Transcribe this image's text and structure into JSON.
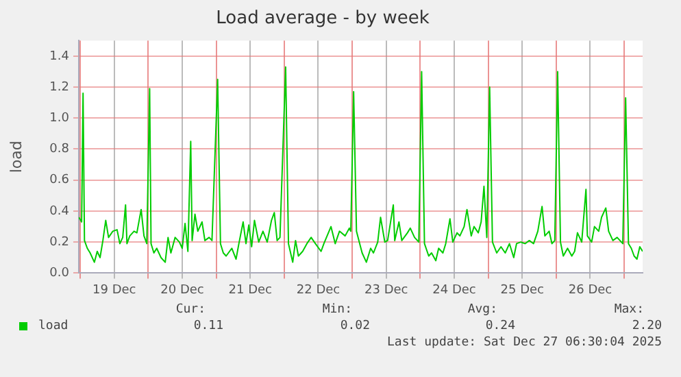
{
  "chart_data": {
    "type": "line",
    "title": "Load average - by week",
    "ylabel": "load",
    "xlim": [
      "2025-12-18T23:30",
      "2025-12-27T06:30"
    ],
    "xticks": [
      {
        "value": "2025-12-19T00:00",
        "label": null
      },
      {
        "value": "2025-12-19T12:00",
        "label": "19 Dec"
      },
      {
        "value": "2025-12-20T00:00",
        "label": null
      },
      {
        "value": "2025-12-20T12:00",
        "label": "20 Dec"
      },
      {
        "value": "2025-12-21T00:00",
        "label": null
      },
      {
        "value": "2025-12-21T12:00",
        "label": "21 Dec"
      },
      {
        "value": "2025-12-22T00:00",
        "label": null
      },
      {
        "value": "2025-12-22T12:00",
        "label": "22 Dec"
      },
      {
        "value": "2025-12-23T00:00",
        "label": null
      },
      {
        "value": "2025-12-23T12:00",
        "label": "23 Dec"
      },
      {
        "value": "2025-12-24T00:00",
        "label": null
      },
      {
        "value": "2025-12-24T12:00",
        "label": "24 Dec"
      },
      {
        "value": "2025-12-25T00:00",
        "label": null
      },
      {
        "value": "2025-12-25T12:00",
        "label": "25 Dec"
      },
      {
        "value": "2025-12-26T00:00",
        "label": null
      },
      {
        "value": "2025-12-26T12:00",
        "label": "26 Dec"
      },
      {
        "value": "2025-12-27T00:00",
        "label": null
      }
    ],
    "ylim": [
      0,
      1.5
    ],
    "yticks": [
      {
        "value": 0,
        "label": "0.0"
      },
      {
        "value": 0.2,
        "label": "0.2"
      },
      {
        "value": 0.4,
        "label": "0.4"
      },
      {
        "value": 0.6,
        "label": "0.6"
      },
      {
        "value": 0.8,
        "label": "0.8"
      },
      {
        "value": 1,
        "label": "1.0"
      },
      {
        "value": 1.2,
        "label": "1.2"
      },
      {
        "value": 1.4,
        "label": "1.4"
      }
    ],
    "grid": true,
    "legend": "bottom",
    "marker": "none",
    "line_style": "solid",
    "annotations": [
      "Cur:",
      "Min:",
      "Avg:",
      "Max:",
      "0.11",
      "0.02",
      "0.24",
      "2.20",
      "Last update: Sat Dec 27 06:30:04 2025"
    ],
    "series": [
      {
        "name": "load",
        "color": "#00cc00",
        "x": [
          "2025-12-18T23:30",
          "2025-12-19T00:30",
          "2025-12-19T01:00",
          "2025-12-19T01:30",
          "2025-12-19T02:30",
          "2025-12-19T03:30",
          "2025-12-19T05:00",
          "2025-12-19T06:00",
          "2025-12-19T07:00",
          "2025-12-19T08:00",
          "2025-12-19T09:00",
          "2025-12-19T10:00",
          "2025-12-19T11:30",
          "2025-12-19T13:00",
          "2025-12-19T14:00",
          "2025-12-19T15:00",
          "2025-12-19T16:00",
          "2025-12-19T16:30",
          "2025-12-19T17:30",
          "2025-12-19T19:00",
          "2025-12-19T20:00",
          "2025-12-19T21:30",
          "2025-12-19T22:30",
          "2025-12-19T23:30",
          "2025-12-20T00:30",
          "2025-12-20T01:00",
          "2025-12-20T02:00",
          "2025-12-20T03:00",
          "2025-12-20T04:30",
          "2025-12-20T06:00",
          "2025-12-20T07:00",
          "2025-12-20T08:00",
          "2025-12-20T09:30",
          "2025-12-20T11:00",
          "2025-12-20T12:00",
          "2025-12-20T13:00",
          "2025-12-20T14:00",
          "2025-12-20T15:00",
          "2025-12-20T15:30",
          "2025-12-20T16:30",
          "2025-12-20T17:30",
          "2025-12-20T19:00",
          "2025-12-20T20:00",
          "2025-12-20T21:30",
          "2025-12-20T22:30",
          "2025-12-21T00:30",
          "2025-12-21T01:30",
          "2025-12-21T02:30",
          "2025-12-21T03:30",
          "2025-12-21T05:30",
          "2025-12-21T07:00",
          "2025-12-21T08:00",
          "2025-12-21T09:30",
          "2025-12-21T10:30",
          "2025-12-21T11:30",
          "2025-12-21T12:30",
          "2025-12-21T13:30",
          "2025-12-21T15:00",
          "2025-12-21T16:30",
          "2025-12-21T18:00",
          "2025-12-21T19:30",
          "2025-12-21T20:30",
          "2025-12-21T21:30",
          "2025-12-21T22:30",
          "2025-12-22T00:30",
          "2025-12-22T01:30",
          "2025-12-22T02:30",
          "2025-12-22T03:00",
          "2025-12-22T04:00",
          "2025-12-22T05:00",
          "2025-12-22T06:30",
          "2025-12-22T08:00",
          "2025-12-22T09:30",
          "2025-12-22T11:00",
          "2025-12-22T13:00",
          "2025-12-22T14:00",
          "2025-12-22T16:30",
          "2025-12-22T18:00",
          "2025-12-22T19:30",
          "2025-12-22T21:30",
          "2025-12-22T23:00",
          "2025-12-22T23:30",
          "2025-12-23T00:30",
          "2025-12-23T01:30",
          "2025-12-23T02:30",
          "2025-12-23T03:30",
          "2025-12-23T05:00",
          "2025-12-23T06:30",
          "2025-12-23T07:30",
          "2025-12-23T09:00",
          "2025-12-23T10:00",
          "2025-12-23T11:30",
          "2025-12-23T12:30",
          "2025-12-23T14:30",
          "2025-12-23T15:00",
          "2025-12-23T16:30",
          "2025-12-23T17:30",
          "2025-12-23T19:30",
          "2025-12-23T20:30",
          "2025-12-23T22:00",
          "2025-12-23T23:30",
          "2025-12-24T00:30",
          "2025-12-24T01:30",
          "2025-12-24T03:00",
          "2025-12-24T04:00",
          "2025-12-24T05:30",
          "2025-12-24T06:30",
          "2025-12-24T08:00",
          "2025-12-24T09:00",
          "2025-12-24T10:30",
          "2025-12-24T11:30",
          "2025-12-24T13:00",
          "2025-12-24T14:00",
          "2025-12-24T15:30",
          "2025-12-24T16:30",
          "2025-12-24T18:00",
          "2025-12-24T19:00",
          "2025-12-24T20:30",
          "2025-12-24T21:30",
          "2025-12-24T22:30",
          "2025-12-24T23:30",
          "2025-12-25T00:30",
          "2025-12-25T01:30",
          "2025-12-25T03:00",
          "2025-12-25T04:30",
          "2025-12-25T06:00",
          "2025-12-25T07:30",
          "2025-12-25T09:00",
          "2025-12-25T10:00",
          "2025-12-25T11:30",
          "2025-12-25T13:00",
          "2025-12-25T14:30",
          "2025-12-25T16:00",
          "2025-12-25T17:30",
          "2025-12-25T19:00",
          "2025-12-25T20:00",
          "2025-12-25T21:30",
          "2025-12-25T22:30",
          "2025-12-25T23:30",
          "2025-12-26T00:30",
          "2025-12-26T01:30",
          "2025-12-26T02:30",
          "2025-12-26T04:00",
          "2025-12-26T05:30",
          "2025-12-26T06:30",
          "2025-12-26T07:30",
          "2025-12-26T09:00",
          "2025-12-26T10:30",
          "2025-12-26T11:00",
          "2025-12-26T12:30",
          "2025-12-26T13:30",
          "2025-12-26T15:00",
          "2025-12-26T16:00",
          "2025-12-26T17:30",
          "2025-12-26T18:30",
          "2025-12-26T20:00",
          "2025-12-26T21:30",
          "2025-12-26T23:00",
          "2025-12-26T23:30",
          "2025-12-27T00:30",
          "2025-12-27T01:30",
          "2025-12-27T02:30",
          "2025-12-27T03:30",
          "2025-12-27T04:30",
          "2025-12-27T05:30",
          "2025-12-27T06:30"
        ],
        "values": [
          0.36,
          0.33,
          1.16,
          0.21,
          0.16,
          0.13,
          0.07,
          0.14,
          0.1,
          0.21,
          0.34,
          0.23,
          0.27,
          0.28,
          0.19,
          0.23,
          0.44,
          0.19,
          0.24,
          0.27,
          0.26,
          0.41,
          0.24,
          0.19,
          1.19,
          0.19,
          0.13,
          0.16,
          0.1,
          0.07,
          0.23,
          0.13,
          0.23,
          0.2,
          0.16,
          0.32,
          0.14,
          0.85,
          0.21,
          0.38,
          0.27,
          0.33,
          0.21,
          0.23,
          0.21,
          1.25,
          0.19,
          0.13,
          0.11,
          0.16,
          0.09,
          0.19,
          0.33,
          0.19,
          0.31,
          0.17,
          0.34,
          0.2,
          0.27,
          0.2,
          0.34,
          0.39,
          0.21,
          0.23,
          1.33,
          0.19,
          0.11,
          0.07,
          0.21,
          0.11,
          0.14,
          0.19,
          0.23,
          0.19,
          0.14,
          0.19,
          0.3,
          0.19,
          0.27,
          0.24,
          0.29,
          0.27,
          1.17,
          0.27,
          0.2,
          0.13,
          0.07,
          0.16,
          0.13,
          0.2,
          0.36,
          0.2,
          0.21,
          0.44,
          0.21,
          0.33,
          0.21,
          0.26,
          0.29,
          0.23,
          0.2,
          1.3,
          0.19,
          0.11,
          0.13,
          0.08,
          0.16,
          0.13,
          0.19,
          0.35,
          0.2,
          0.26,
          0.24,
          0.3,
          0.41,
          0.24,
          0.3,
          0.26,
          0.33,
          0.56,
          0.23,
          1.2,
          0.2,
          0.13,
          0.17,
          0.13,
          0.19,
          0.1,
          0.19,
          0.2,
          0.19,
          0.21,
          0.19,
          0.27,
          0.43,
          0.24,
          0.27,
          0.19,
          0.21,
          1.3,
          0.2,
          0.11,
          0.16,
          0.11,
          0.14,
          0.26,
          0.2,
          0.54,
          0.24,
          0.2,
          0.3,
          0.27,
          0.36,
          0.42,
          0.27,
          0.21,
          0.23,
          0.2,
          0.19,
          1.13,
          0.19,
          0.16,
          0.11,
          0.09,
          0.17,
          0.14
        ]
      }
    ]
  }
}
